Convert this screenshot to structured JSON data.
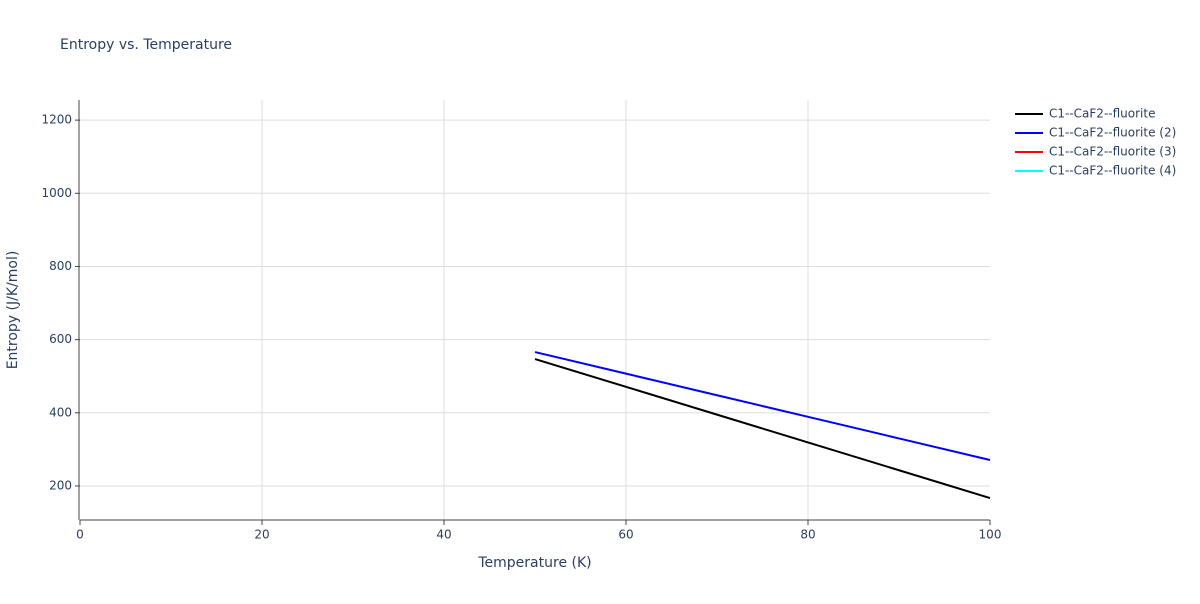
{
  "chart_data": {
    "type": "line",
    "title": "Entropy vs. Temperature",
    "x_label": "Temperature (K)",
    "y_label": "Entropy (J/K/mol)",
    "x": [
      50,
      60,
      70,
      80,
      90,
      100
    ],
    "series": [
      {
        "name": "C1--CaF2--fluorite",
        "color": "#000000",
        "values": [
          547,
          471,
          395,
          319,
          243,
          167
        ]
      },
      {
        "name": "C1--CaF2--fluorite (2)",
        "color": "#0000ff",
        "values": [
          566,
          507,
          448,
          389,
          330,
          271
        ]
      },
      {
        "name": "C1--CaF2--fluorite (3)",
        "color": "#ff0000",
        "values": [
          null,
          null,
          null,
          null,
          null,
          null
        ]
      },
      {
        "name": "C1--CaF2--fluorite (4)",
        "color": "#00ffff",
        "values": [
          null,
          null,
          null,
          null,
          null,
          null
        ]
      }
    ],
    "xlim": [
      0,
      100
    ],
    "xticks": [
      0,
      20,
      40,
      60,
      80,
      100
    ],
    "ylim": [
      107,
      1255
    ],
    "yticks": [
      200,
      400,
      600,
      800,
      1000,
      1200
    ],
    "grid": true,
    "legend": "right"
  }
}
